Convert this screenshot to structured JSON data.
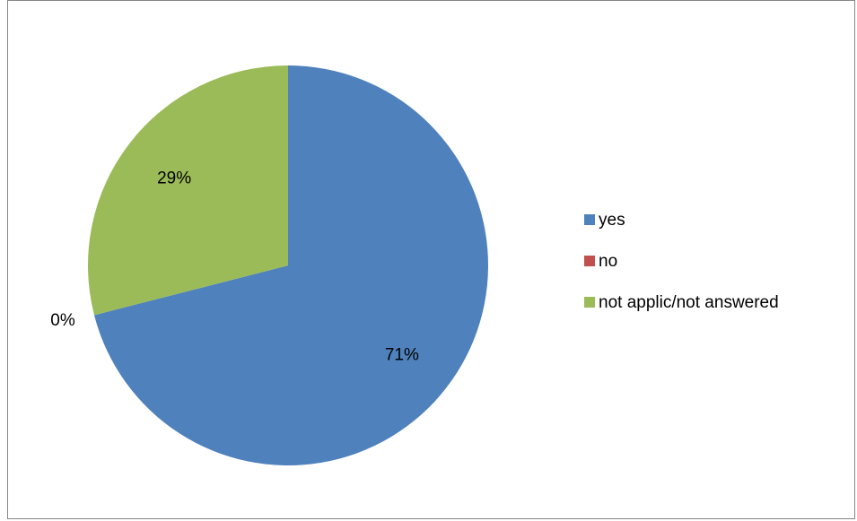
{
  "chart_data": {
    "type": "pie",
    "title": "",
    "categories": [
      "yes",
      "no",
      "not applic/not answered"
    ],
    "values": [
      71,
      0,
      29
    ],
    "data_labels": [
      "71%",
      "0%",
      "29%"
    ],
    "colors": [
      "#4F81BD",
      "#C0504D",
      "#9BBB59"
    ],
    "legend_position": "right",
    "start_angle_deg": 0,
    "direction": "clockwise"
  }
}
